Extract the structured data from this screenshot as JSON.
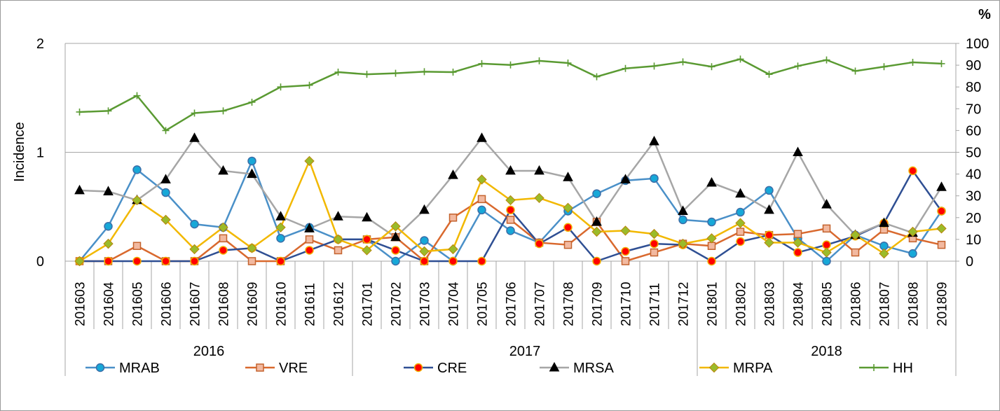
{
  "chart_data": {
    "type": "line",
    "title": "",
    "ylabel": "Incidence",
    "y2label": "%",
    "ylim": [
      0,
      2
    ],
    "y2lim": [
      0,
      100
    ],
    "yticks": [
      "0",
      "1",
      "2"
    ],
    "y2ticks": [
      "0",
      "10",
      "20",
      "30",
      "40",
      "50",
      "60",
      "70",
      "80",
      "90",
      "100"
    ],
    "grid": "horizontal at 1 and 2",
    "legend_position": "bottom",
    "year_groups": [
      {
        "label": "2016",
        "start": 0,
        "end": 9
      },
      {
        "label": "2017",
        "start": 10,
        "end": 21
      },
      {
        "label": "2018",
        "start": 22,
        "end": 30
      }
    ],
    "categories": [
      "201603",
      "201604",
      "201605",
      "201606",
      "201607",
      "201608",
      "201609",
      "201610",
      "201611",
      "201612",
      "201701",
      "201702",
      "201703",
      "201704",
      "201705",
      "201706",
      "201707",
      "201708",
      "201709",
      "201710",
      "201711",
      "201712",
      "201801",
      "201802",
      "201803",
      "201804",
      "201805",
      "201806",
      "201807",
      "201808",
      "201809"
    ],
    "series": [
      {
        "name": "MRAB",
        "axis": "left",
        "color": "#4A90C8",
        "marker": "circle",
        "marker_fill": "#17A8D8",
        "values": [
          0,
          0.32,
          0.84,
          0.63,
          0.34,
          0.31,
          0.92,
          0.21,
          0.31,
          0.2,
          0.2,
          0,
          0.19,
          0,
          0.47,
          0.28,
          0.17,
          0.46,
          0.62,
          0.74,
          0.76,
          0.38,
          0.36,
          0.45,
          0.65,
          0.21,
          0,
          0.24,
          0.14,
          0.07,
          0.46
        ]
      },
      {
        "name": "VRE",
        "axis": "left",
        "color": "#D9692E",
        "marker": "square",
        "marker_fill": "#F2B9A0",
        "values": [
          0,
          0,
          0.14,
          0,
          0,
          0.21,
          0,
          0,
          0.2,
          0.1,
          0.2,
          0.22,
          0,
          0.4,
          0.57,
          0.38,
          0.17,
          0.15,
          0.36,
          0,
          0.08,
          0.16,
          0.14,
          0.27,
          0.24,
          0.25,
          0.3,
          0.08,
          0.29,
          0.21,
          0.15
        ]
      },
      {
        "name": "CRE",
        "axis": "left",
        "color": "#2F4F93",
        "marker": "circle",
        "marker_fill": "#FF0000",
        "values": [
          0,
          0,
          0,
          0,
          0,
          0.1,
          0.12,
          0,
          0.1,
          0.2,
          0.2,
          0.1,
          0,
          0,
          0,
          0.47,
          0.16,
          0.31,
          0,
          0.09,
          0.16,
          0.15,
          0,
          0.18,
          0.24,
          0.08,
          0.15,
          0.23,
          0.35,
          0.83,
          0.46
        ]
      },
      {
        "name": "MRSA",
        "axis": "left",
        "color": "#A6A6A6",
        "marker": "triangle",
        "marker_fill": "#000000",
        "values": [
          0.65,
          0.64,
          0.56,
          0.75,
          1.13,
          0.83,
          0.8,
          0.41,
          0.3,
          0.41,
          0.4,
          0.22,
          0.47,
          0.79,
          1.13,
          0.83,
          0.83,
          0.77,
          0.36,
          0.75,
          1.1,
          0.46,
          0.72,
          0.62,
          0.47,
          1.0,
          0.52,
          0.24,
          0.35,
          0.26,
          0.68
        ]
      },
      {
        "name": "MRPA",
        "axis": "left",
        "color": "#F2B800",
        "marker": "diamond",
        "marker_fill": "#9BBB2A",
        "values": [
          0,
          0.16,
          0.56,
          0.38,
          0.11,
          0.31,
          0.12,
          0.31,
          0.92,
          0.2,
          0.1,
          0.32,
          0.09,
          0.11,
          0.75,
          0.56,
          0.58,
          0.49,
          0.27,
          0.28,
          0.25,
          0.16,
          0.21,
          0.35,
          0.17,
          0.17,
          0.08,
          0.24,
          0.07,
          0.27,
          0.3
        ]
      },
      {
        "name": "HH",
        "axis": "right",
        "color": "#5A9A32",
        "marker": "plus",
        "marker_fill": "#5A9A32",
        "values": [
          68.5,
          69,
          76,
          60,
          68,
          69,
          73,
          80,
          80.8,
          86.8,
          85.8,
          86.3,
          87,
          86.8,
          90.7,
          90.1,
          92,
          91,
          84.7,
          88.5,
          89.6,
          91.5,
          89.3,
          92.8,
          85.8,
          89.6,
          92.4,
          87.3,
          89.3,
          91.3,
          90.7
        ]
      }
    ]
  }
}
